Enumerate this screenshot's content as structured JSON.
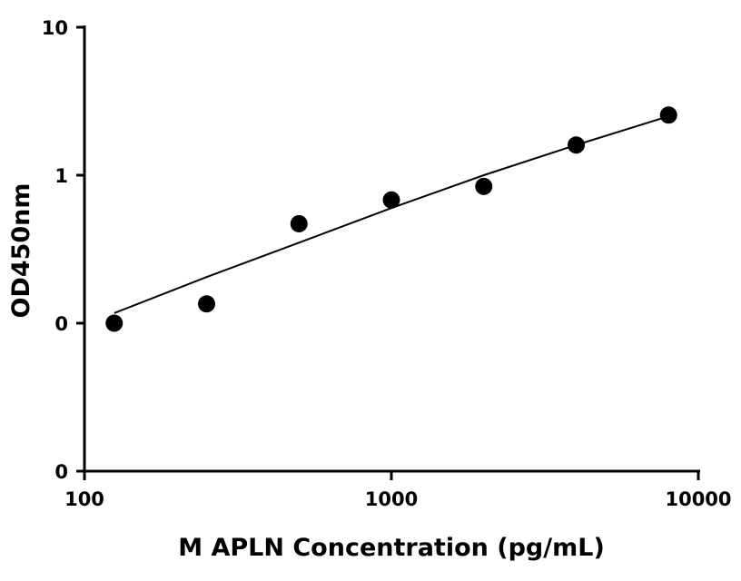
{
  "chart_data": {
    "type": "scatter",
    "xlabel": "M APLN Concentration (pg/mL)",
    "ylabel": "OD450nm",
    "x_scale": "log",
    "y_scale": "log",
    "xlim": [
      100,
      10000
    ],
    "ylim": [
      0.01,
      10
    ],
    "x_ticks": [
      {
        "value": 100,
        "label": "100"
      },
      {
        "value": 1000,
        "label": "1000"
      },
      {
        "value": 10000,
        "label": "10000"
      }
    ],
    "y_ticks": [
      {
        "value": 0.01,
        "label": "0"
      },
      {
        "value": 0.1,
        "label": "0"
      },
      {
        "value": 1,
        "label": "1"
      },
      {
        "value": 10,
        "label": "10"
      }
    ],
    "points": [
      {
        "x": 125,
        "y": 0.1
      },
      {
        "x": 250,
        "y": 0.135
      },
      {
        "x": 500,
        "y": 0.47
      },
      {
        "x": 1000,
        "y": 0.68
      },
      {
        "x": 2000,
        "y": 0.84
      },
      {
        "x": 4000,
        "y": 1.6
      },
      {
        "x": 8000,
        "y": 2.55
      }
    ],
    "fit_curve": {
      "x": [
        125,
        250,
        500,
        1000,
        2000,
        4000,
        8000
      ],
      "y": [
        0.117,
        0.205,
        0.35,
        0.6,
        1.0,
        1.6,
        2.5
      ]
    },
    "grid": false,
    "legend": "none"
  }
}
